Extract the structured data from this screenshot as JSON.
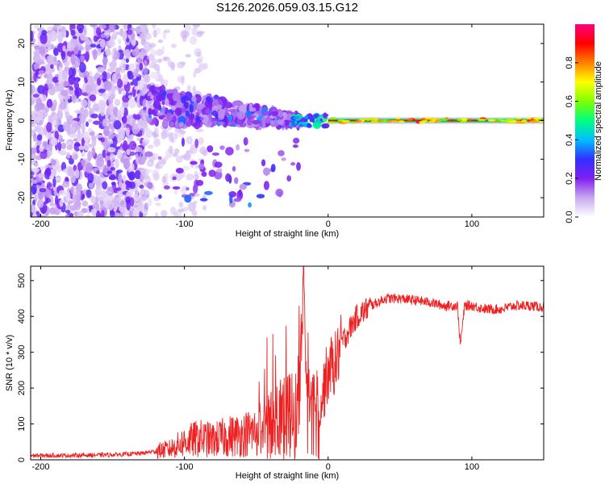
{
  "title": "S126.2026.059.03.15.G12",
  "chart_data": [
    {
      "type": "heatmap",
      "name": "spectrogram",
      "xlabel": "Height of straight line (km)",
      "ylabel": "Frequency (Hz)",
      "xlim": [
        -207,
        150
      ],
      "ylim": [
        -25,
        25
      ],
      "xticks": [
        -200,
        -100,
        0,
        100
      ],
      "yticks": [
        -20,
        -10,
        0,
        10,
        20
      ],
      "colorbar": {
        "label": "Normalized spectral amplitude",
        "range": [
          0.0,
          1.0
        ],
        "ticks": [
          "0.0",
          "0.2",
          "0.4",
          "0.6",
          "0.8"
        ],
        "tick_values": [
          0.0,
          0.2,
          0.4,
          0.6,
          0.8
        ],
        "colors": [
          "#ffffff",
          "#c8a8f0",
          "#8020f0",
          "#3030ff",
          "#00c0ff",
          "#00ff80",
          "#80ff00",
          "#ffff00",
          "#ff8000",
          "#ff0000",
          "#ff0080"
        ]
      },
      "features": [
        {
          "label": "scattered noise",
          "x_range": [
            -207,
            -125
          ],
          "y_range": [
            -25,
            25
          ],
          "amplitude": 0.15
        },
        {
          "label": "diffuse transition",
          "x_range": [
            -125,
            -20
          ],
          "y_range": [
            -22,
            10
          ],
          "amplitude": 0.3
        },
        {
          "label": "signal line",
          "x_range": [
            0,
            150
          ],
          "y": 0,
          "amplitude": 0.9
        }
      ]
    },
    {
      "type": "line",
      "name": "snr",
      "xlabel": "Height of straight line (km)",
      "ylabel": "SNR (10 * v/v)",
      "xlim": [
        -207,
        150
      ],
      "ylim": [
        0,
        540
      ],
      "xticks": [
        -200,
        -100,
        0,
        100
      ],
      "yticks": [
        0,
        100,
        200,
        300,
        400,
        500
      ],
      "color": "#ee2020",
      "series": [
        {
          "name": "SNR",
          "x": [
            -207,
            -180,
            -150,
            -130,
            -110,
            -100,
            -90,
            -80,
            -70,
            -60,
            -50,
            -40,
            -35,
            -30,
            -25,
            -20,
            -17,
            -15,
            -10,
            -5,
            0,
            5,
            10,
            20,
            30,
            40,
            50,
            60,
            70,
            80,
            90,
            92,
            95,
            100,
            110,
            120,
            130,
            140,
            150
          ],
          "y": [
            12,
            12,
            14,
            18,
            30,
            50,
            60,
            55,
            65,
            70,
            80,
            110,
            130,
            150,
            120,
            160,
            540,
            200,
            180,
            160,
            250,
            270,
            330,
            400,
            430,
            450,
            450,
            445,
            440,
            430,
            430,
            320,
            430,
            430,
            420,
            420,
            430,
            430,
            425
          ]
        }
      ]
    }
  ]
}
